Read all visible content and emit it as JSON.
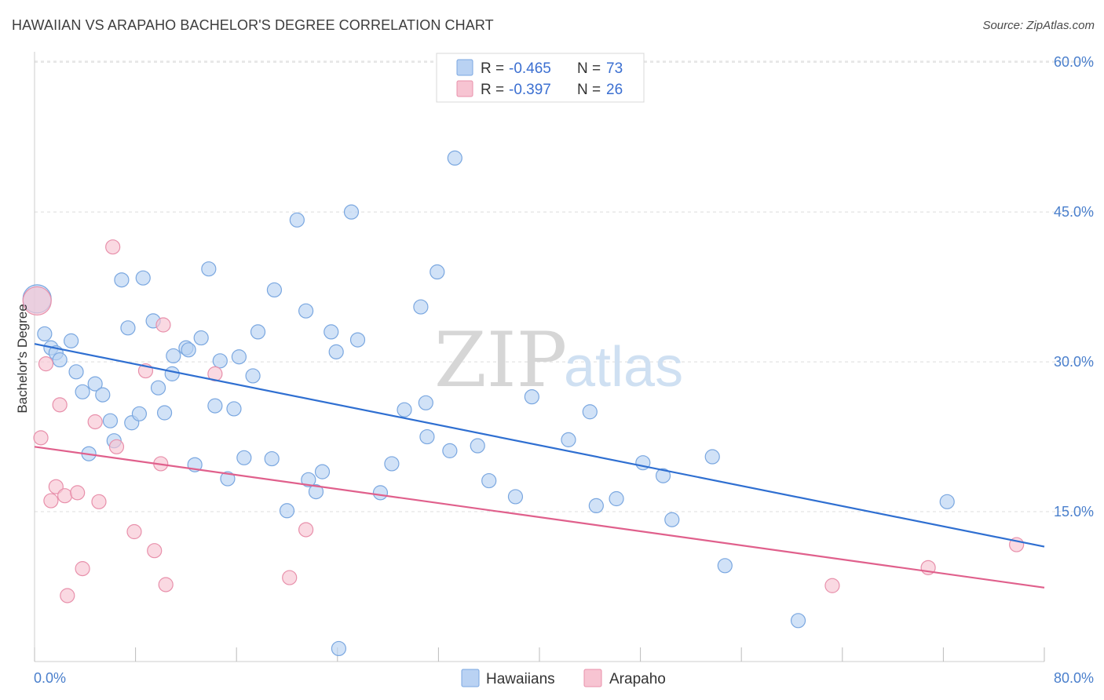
{
  "title": "HAWAIIAN VS ARAPAHO BACHELOR'S DEGREE CORRELATION CHART",
  "source": "Source: ZipAtlas.com",
  "watermark": {
    "zip": "ZIP",
    "atlas": "atlas"
  },
  "legend": {
    "rows": [
      {
        "r_label": "R =",
        "r_value": "-0.465",
        "n_label": "N =",
        "n_value": "73"
      },
      {
        "r_label": "R =",
        "r_value": "-0.397",
        "n_label": "N =",
        "n_value": "26"
      }
    ]
  },
  "colors": {
    "hawaiians_fill": "#b9d2f3",
    "hawaiians_stroke": "#7aa7e0",
    "hawaiians_line": "#2f6fd1",
    "arapaho_fill": "#f7c4d2",
    "arapaho_stroke": "#e890ab",
    "arapaho_line": "#e0608c",
    "axis_text": "#4a7fcc",
    "grid": "#dddddd"
  },
  "chart_data": {
    "type": "scatter",
    "title": "HAWAIIAN VS ARAPAHO BACHELOR'S DEGREE CORRELATION CHART",
    "xlabel": "",
    "ylabel": "Bachelor's Degree",
    "xlim": [
      0,
      80
    ],
    "ylim": [
      0,
      64
    ],
    "x_tick_labels": [
      "0.0%",
      "80.0%"
    ],
    "y_ticks": [
      15,
      30,
      45,
      60
    ],
    "y_tick_labels": [
      "15.0%",
      "30.0%",
      "45.0%",
      "60.0%"
    ],
    "grid": true,
    "legend_position": "top-center",
    "series": [
      {
        "name": "Hawaiians",
        "r": -0.465,
        "n": 73,
        "trend": {
          "x": [
            0,
            80
          ],
          "y": [
            31.8,
            11.5
          ]
        },
        "points": [
          [
            0.2,
            36.3
          ],
          [
            0.8,
            32.8
          ],
          [
            1.3,
            31.4
          ],
          [
            1.7,
            30.9
          ],
          [
            2.0,
            30.2
          ],
          [
            2.9,
            32.1
          ],
          [
            3.3,
            29.0
          ],
          [
            3.8,
            27.0
          ],
          [
            4.3,
            20.8
          ],
          [
            4.8,
            27.8
          ],
          [
            5.4,
            26.7
          ],
          [
            6.0,
            24.1
          ],
          [
            6.3,
            22.1
          ],
          [
            6.9,
            38.2
          ],
          [
            7.4,
            33.4
          ],
          [
            7.7,
            23.9
          ],
          [
            8.3,
            24.8
          ],
          [
            8.6,
            38.4
          ],
          [
            9.4,
            34.1
          ],
          [
            9.8,
            27.4
          ],
          [
            10.3,
            24.9
          ],
          [
            10.9,
            28.8
          ],
          [
            11.0,
            30.6
          ],
          [
            12.0,
            31.4
          ],
          [
            12.2,
            31.2
          ],
          [
            12.7,
            19.7
          ],
          [
            13.2,
            32.4
          ],
          [
            13.8,
            39.3
          ],
          [
            14.3,
            25.6
          ],
          [
            14.7,
            30.1
          ],
          [
            15.3,
            18.3
          ],
          [
            15.8,
            25.3
          ],
          [
            16.2,
            30.5
          ],
          [
            16.6,
            20.4
          ],
          [
            17.3,
            28.6
          ],
          [
            17.7,
            33.0
          ],
          [
            18.8,
            20.3
          ],
          [
            19.0,
            37.2
          ],
          [
            20.0,
            15.1
          ],
          [
            20.8,
            44.2
          ],
          [
            21.5,
            35.1
          ],
          [
            21.7,
            18.2
          ],
          [
            22.3,
            17.0
          ],
          [
            22.8,
            19.0
          ],
          [
            23.5,
            33.0
          ],
          [
            23.9,
            31.0
          ],
          [
            25.1,
            45.0
          ],
          [
            25.6,
            32.2
          ],
          [
            27.4,
            16.9
          ],
          [
            28.3,
            19.8
          ],
          [
            29.3,
            25.2
          ],
          [
            30.6,
            35.5
          ],
          [
            31.0,
            25.9
          ],
          [
            31.1,
            22.5
          ],
          [
            31.9,
            39.0
          ],
          [
            32.9,
            21.1
          ],
          [
            33.3,
            50.4
          ],
          [
            35.1,
            21.6
          ],
          [
            36.0,
            18.1
          ],
          [
            38.1,
            16.5
          ],
          [
            39.4,
            26.5
          ],
          [
            42.3,
            22.2
          ],
          [
            44.0,
            25.0
          ],
          [
            44.5,
            15.6
          ],
          [
            46.1,
            16.3
          ],
          [
            48.2,
            19.9
          ],
          [
            49.8,
            18.6
          ],
          [
            50.5,
            14.2
          ],
          [
            53.7,
            20.5
          ],
          [
            54.7,
            9.6
          ],
          [
            60.5,
            4.1
          ],
          [
            72.3,
            16.0
          ],
          [
            24.1,
            1.3
          ]
        ]
      },
      {
        "name": "Arapaho",
        "r": -0.397,
        "n": 26,
        "trend": {
          "x": [
            0,
            80
          ],
          "y": [
            21.5,
            7.4
          ]
        },
        "points": [
          [
            0.2,
            36.1
          ],
          [
            0.5,
            22.4
          ],
          [
            0.9,
            29.8
          ],
          [
            1.3,
            16.1
          ],
          [
            1.7,
            17.5
          ],
          [
            2.0,
            25.7
          ],
          [
            2.4,
            16.6
          ],
          [
            2.6,
            6.6
          ],
          [
            3.4,
            16.9
          ],
          [
            3.8,
            9.3
          ],
          [
            4.8,
            24.0
          ],
          [
            5.1,
            16.0
          ],
          [
            6.2,
            41.5
          ],
          [
            6.5,
            21.5
          ],
          [
            7.9,
            13.0
          ],
          [
            8.8,
            29.1
          ],
          [
            9.5,
            11.1
          ],
          [
            10.0,
            19.8
          ],
          [
            10.2,
            33.7
          ],
          [
            10.4,
            7.7
          ],
          [
            14.3,
            28.8
          ],
          [
            20.2,
            8.4
          ],
          [
            21.5,
            13.2
          ],
          [
            63.2,
            7.6
          ],
          [
            70.8,
            9.4
          ],
          [
            77.8,
            11.7
          ]
        ]
      }
    ]
  },
  "bottom_legend": {
    "items": [
      "Hawaiians",
      "Arapaho"
    ]
  }
}
